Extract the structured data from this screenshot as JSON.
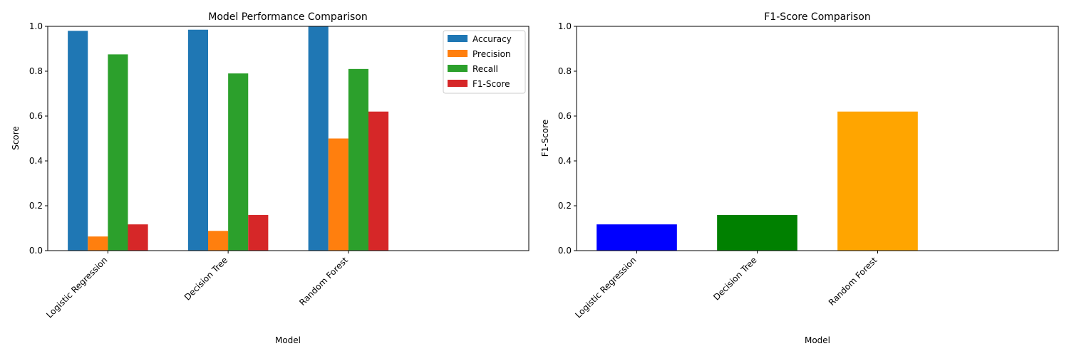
{
  "chart_data": [
    {
      "type": "bar",
      "title": "Model Performance Comparison",
      "xlabel": "Model",
      "ylabel": "Score",
      "categories": [
        "Logistic Regression",
        "Decision Tree",
        "Random Forest"
      ],
      "series": [
        {
          "name": "Accuracy",
          "color": "#1f77b4",
          "values": [
            0.98,
            0.985,
            1.0
          ]
        },
        {
          "name": "Precision",
          "color": "#ff7f0e",
          "values": [
            0.063,
            0.088,
            0.5
          ]
        },
        {
          "name": "Recall",
          "color": "#2ca02c",
          "values": [
            0.875,
            0.79,
            0.81
          ]
        },
        {
          "name": "F1-Score",
          "color": "#d62728",
          "values": [
            0.117,
            0.159,
            0.62
          ]
        }
      ],
      "ylim": [
        0,
        1.0
      ],
      "yticks": [
        "0.0",
        "0.2",
        "0.4",
        "0.6",
        "0.8",
        "1.0"
      ],
      "legend": "top-right",
      "grid": false
    },
    {
      "type": "bar",
      "title": "F1-Score Comparison",
      "xlabel": "Model",
      "ylabel": "F1-Score",
      "categories": [
        "Logistic Regression",
        "Decision Tree",
        "Random Forest"
      ],
      "values": [
        0.117,
        0.159,
        0.62
      ],
      "colors": [
        "#0000ff",
        "#008000",
        "#ffa500"
      ],
      "ylim": [
        0,
        1.0
      ],
      "yticks": [
        "0.0",
        "0.2",
        "0.4",
        "0.6",
        "0.8",
        "1.0"
      ],
      "grid": false
    }
  ]
}
